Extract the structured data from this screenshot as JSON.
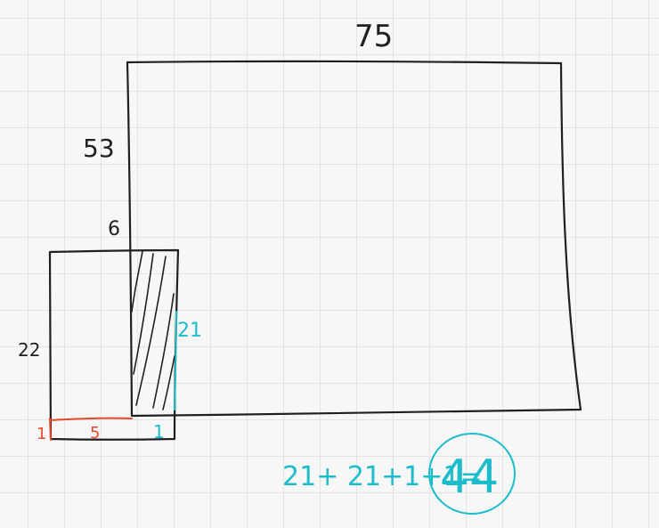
{
  "diagram": {
    "labels": {
      "top_width": "75",
      "left_height": "53",
      "gap": "6",
      "small_height": "22",
      "bottom_red_left": "1",
      "bottom_red_width": "5",
      "bottom_cyan": "1",
      "cyan_height": "21",
      "equation": "21+ 21+1+1=",
      "answer": "44"
    },
    "colors": {
      "ink": "#202020",
      "red": "#e8482b",
      "cyan": "#1cbccb",
      "background": "#f7f7f7",
      "grid": "#e4e4e4"
    }
  }
}
